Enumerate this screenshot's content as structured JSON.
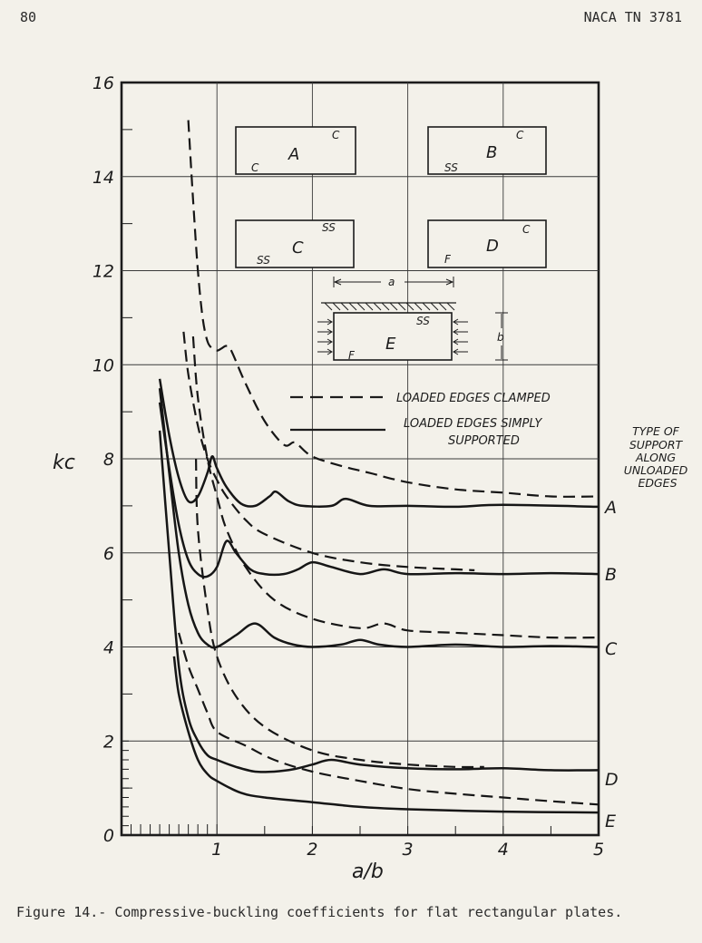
{
  "header": {
    "page_number": "80",
    "report_id": "NACA TN 3781"
  },
  "caption": "Figure 14.- Compressive-buckling coefficients for flat rectangular plates.",
  "chart_data": {
    "type": "line",
    "title": "",
    "xlabel": "a/b",
    "ylabel": "kc",
    "xlim": [
      0,
      5
    ],
    "ylim": [
      0,
      16
    ],
    "x_ticks": [
      "0",
      "1",
      "2",
      "3",
      "4",
      "5"
    ],
    "y_ticks": [
      "0",
      "2",
      "4",
      "6",
      "8",
      "10",
      "12",
      "14",
      "16"
    ],
    "grid": true,
    "support_column_label": "TYPE OF SUPPORT ALONG UNLOADED EDGES",
    "legend": {
      "clamped": "LOADED EDGES CLAMPED",
      "simply": "LOADED EDGES SIMPLY SUPPORTED"
    },
    "insets": {
      "A": {
        "letter": "A",
        "unloaded": "C",
        "loaded": "C"
      },
      "B": {
        "letter": "B",
        "unloaded": "C",
        "loaded": "SS"
      },
      "C": {
        "letter": "C",
        "unloaded": "SS",
        "loaded": "SS"
      },
      "D": {
        "letter": "D",
        "unloaded": "C",
        "loaded": "F"
      },
      "E": {
        "letter": "E",
        "unloaded": "SS",
        "loaded": "F",
        "dim_a": "a",
        "dim_b": "b"
      }
    },
    "series": [
      {
        "name": "A",
        "loaded_edges": "simply supported",
        "points": [
          [
            0.4,
            9.7
          ],
          [
            0.5,
            8.5
          ],
          [
            0.6,
            7.6
          ],
          [
            0.7,
            7.1
          ],
          [
            0.8,
            7.2
          ],
          [
            0.9,
            7.7
          ],
          [
            0.95,
            8.05
          ],
          [
            1.0,
            7.8
          ],
          [
            1.1,
            7.4
          ],
          [
            1.25,
            7.05
          ],
          [
            1.4,
            7.0
          ],
          [
            1.55,
            7.2
          ],
          [
            1.62,
            7.3
          ],
          [
            1.75,
            7.1
          ],
          [
            1.9,
            7.0
          ],
          [
            2.2,
            7.0
          ],
          [
            2.35,
            7.15
          ],
          [
            2.6,
            7.0
          ],
          [
            3.0,
            7.0
          ],
          [
            3.5,
            6.98
          ],
          [
            4.0,
            7.02
          ],
          [
            5.0,
            6.98
          ]
        ]
      },
      {
        "name": "A",
        "loaded_edges": "clamped",
        "points": [
          [
            0.7,
            15.2
          ],
          [
            0.75,
            13.5
          ],
          [
            0.8,
            12.0
          ],
          [
            0.85,
            11.0
          ],
          [
            0.9,
            10.5
          ],
          [
            0.95,
            10.35
          ],
          [
            1.0,
            10.3
          ],
          [
            1.05,
            10.35
          ],
          [
            1.1,
            10.4
          ],
          [
            1.15,
            10.3
          ],
          [
            1.3,
            9.6
          ],
          [
            1.5,
            8.8
          ],
          [
            1.7,
            8.3
          ],
          [
            1.8,
            8.35
          ],
          [
            1.85,
            8.3
          ],
          [
            2.0,
            8.05
          ],
          [
            2.3,
            7.85
          ],
          [
            2.6,
            7.7
          ],
          [
            3.0,
            7.5
          ],
          [
            3.5,
            7.35
          ],
          [
            4.0,
            7.28
          ],
          [
            4.5,
            7.2
          ],
          [
            5.0,
            7.2
          ]
        ]
      },
      {
        "name": "B",
        "loaded_edges": "simply supported",
        "points": [
          [
            0.4,
            9.2
          ],
          [
            0.5,
            7.8
          ],
          [
            0.6,
            6.6
          ],
          [
            0.7,
            5.85
          ],
          [
            0.8,
            5.55
          ],
          [
            0.9,
            5.5
          ],
          [
            1.0,
            5.7
          ],
          [
            1.1,
            6.25
          ],
          [
            1.2,
            6.0
          ],
          [
            1.35,
            5.65
          ],
          [
            1.5,
            5.55
          ],
          [
            1.7,
            5.55
          ],
          [
            1.85,
            5.65
          ],
          [
            2.0,
            5.8
          ],
          [
            2.2,
            5.7
          ],
          [
            2.5,
            5.55
          ],
          [
            2.75,
            5.65
          ],
          [
            3.0,
            5.55
          ],
          [
            3.5,
            5.57
          ],
          [
            4.0,
            5.55
          ],
          [
            4.5,
            5.57
          ],
          [
            5.0,
            5.55
          ]
        ]
      },
      {
        "name": "B",
        "loaded_edges": "clamped",
        "points": [
          [
            0.65,
            10.7
          ],
          [
            0.7,
            9.8
          ],
          [
            0.8,
            8.7
          ],
          [
            0.9,
            8.0
          ],
          [
            1.0,
            7.55
          ],
          [
            1.1,
            7.2
          ],
          [
            1.3,
            6.7
          ],
          [
            1.5,
            6.4
          ],
          [
            2.0,
            6.0
          ],
          [
            2.5,
            5.8
          ],
          [
            3.0,
            5.7
          ],
          [
            3.5,
            5.65
          ],
          [
            3.7,
            5.63
          ]
        ]
      },
      {
        "name": "C",
        "loaded_edges": "simply supported",
        "points": [
          [
            0.4,
            9.5
          ],
          [
            0.5,
            7.7
          ],
          [
            0.6,
            6.0
          ],
          [
            0.7,
            4.9
          ],
          [
            0.8,
            4.3
          ],
          [
            0.9,
            4.05
          ],
          [
            1.0,
            4.0
          ],
          [
            1.2,
            4.25
          ],
          [
            1.4,
            4.5
          ],
          [
            1.6,
            4.2
          ],
          [
            1.8,
            4.05
          ],
          [
            2.0,
            4.0
          ],
          [
            2.3,
            4.05
          ],
          [
            2.5,
            4.15
          ],
          [
            2.7,
            4.05
          ],
          [
            3.0,
            4.0
          ],
          [
            3.5,
            4.05
          ],
          [
            4.0,
            4.0
          ],
          [
            4.5,
            4.02
          ],
          [
            5.0,
            4.0
          ]
        ]
      },
      {
        "name": "C",
        "loaded_edges": "clamped",
        "points": [
          [
            0.75,
            10.6
          ],
          [
            0.8,
            9.3
          ],
          [
            0.9,
            8.0
          ],
          [
            1.0,
            7.2
          ],
          [
            1.1,
            6.5
          ],
          [
            1.3,
            5.7
          ],
          [
            1.6,
            5.0
          ],
          [
            2.0,
            4.6
          ],
          [
            2.5,
            4.4
          ],
          [
            2.75,
            4.5
          ],
          [
            3.0,
            4.35
          ],
          [
            3.5,
            4.3
          ],
          [
            4.0,
            4.25
          ],
          [
            4.5,
            4.2
          ],
          [
            5.0,
            4.2
          ]
        ]
      },
      {
        "name": "D",
        "loaded_edges": "simply supported",
        "points": [
          [
            0.4,
            8.6
          ],
          [
            0.5,
            6.0
          ],
          [
            0.6,
            3.6
          ],
          [
            0.7,
            2.5
          ],
          [
            0.8,
            2.0
          ],
          [
            0.9,
            1.7
          ],
          [
            1.0,
            1.6
          ],
          [
            1.2,
            1.45
          ],
          [
            1.4,
            1.35
          ],
          [
            1.6,
            1.35
          ],
          [
            1.8,
            1.4
          ],
          [
            2.0,
            1.5
          ],
          [
            2.2,
            1.6
          ],
          [
            2.5,
            1.5
          ],
          [
            3.0,
            1.42
          ],
          [
            3.5,
            1.4
          ],
          [
            4.0,
            1.42
          ],
          [
            4.5,
            1.38
          ],
          [
            5.0,
            1.38
          ]
        ]
      },
      {
        "name": "D",
        "loaded_edges": "clamped",
        "points": [
          [
            0.78,
            8.0
          ],
          [
            0.8,
            6.5
          ],
          [
            0.9,
            4.8
          ],
          [
            1.0,
            3.8
          ],
          [
            1.2,
            2.95
          ],
          [
            1.5,
            2.3
          ],
          [
            2.0,
            1.8
          ],
          [
            2.5,
            1.6
          ],
          [
            3.0,
            1.5
          ],
          [
            3.5,
            1.45
          ],
          [
            3.8,
            1.45
          ]
        ]
      },
      {
        "name": "E",
        "loaded_edges": "simply supported",
        "points": [
          [
            0.55,
            3.8
          ],
          [
            0.6,
            3.0
          ],
          [
            0.7,
            2.2
          ],
          [
            0.8,
            1.6
          ],
          [
            0.9,
            1.3
          ],
          [
            1.0,
            1.15
          ],
          [
            1.25,
            0.9
          ],
          [
            1.5,
            0.8
          ],
          [
            2.0,
            0.7
          ],
          [
            2.5,
            0.6
          ],
          [
            3.0,
            0.55
          ],
          [
            4.0,
            0.5
          ],
          [
            5.0,
            0.48
          ]
        ]
      },
      {
        "name": "E",
        "loaded_edges": "clamped",
        "points": [
          [
            0.6,
            4.3
          ],
          [
            0.7,
            3.6
          ],
          [
            0.8,
            3.1
          ],
          [
            0.9,
            2.6
          ],
          [
            1.0,
            2.2
          ],
          [
            1.3,
            1.9
          ],
          [
            1.6,
            1.6
          ],
          [
            2.0,
            1.35
          ],
          [
            2.5,
            1.15
          ],
          [
            3.0,
            0.98
          ],
          [
            3.5,
            0.88
          ],
          [
            4.0,
            0.8
          ],
          [
            4.5,
            0.72
          ],
          [
            5.0,
            0.65
          ]
        ]
      }
    ]
  }
}
